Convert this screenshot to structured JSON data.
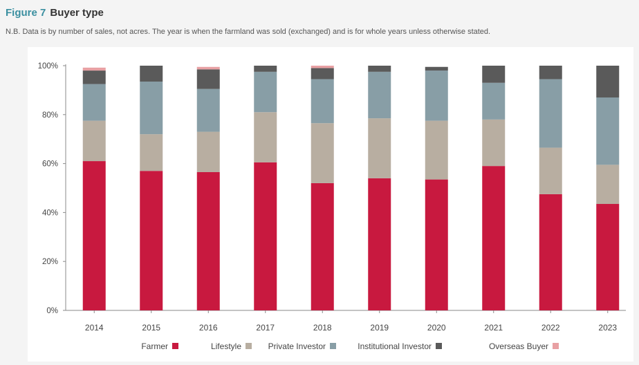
{
  "figure": {
    "number": "Figure 7",
    "title": "Buyer type",
    "note": "N.B. Data is by number of sales, not acres. The year is when the farmland was sold (exchanged) and is for whole years unless otherwise stated."
  },
  "chart_data": {
    "type": "bar",
    "stacked": true,
    "title": "Buyer type",
    "xlabel": "",
    "ylabel": "",
    "ylim": [
      0,
      100
    ],
    "y_ticks": [
      "0%",
      "20%",
      "40%",
      "60%",
      "80%",
      "100%"
    ],
    "y_tick_values": [
      0,
      20,
      40,
      60,
      80,
      100
    ],
    "categories": [
      "2014",
      "2015",
      "2016",
      "2017",
      "2018",
      "2019",
      "2020",
      "2021",
      "2022",
      "2023"
    ],
    "series": [
      {
        "name": "Farmer",
        "color": "#c8193f",
        "values": [
          61,
          57,
          56.5,
          60.5,
          52,
          54,
          53.5,
          59,
          47.5,
          43.5
        ]
      },
      {
        "name": "Lifestyle",
        "color": "#b8aea1",
        "values": [
          16.5,
          15,
          16.5,
          20.5,
          24.5,
          24.5,
          24,
          19,
          19,
          16
        ]
      },
      {
        "name": "Private Investor",
        "color": "#889ea6",
        "values": [
          15,
          21.5,
          17.5,
          16.5,
          18,
          19,
          20.5,
          15,
          28,
          27.5
        ]
      },
      {
        "name": "Institutional Investor",
        "color": "#5a5a5a",
        "values": [
          5.5,
          6.5,
          8,
          2.5,
          4.5,
          2.5,
          1.5,
          7,
          5.5,
          13
        ]
      },
      {
        "name": "Overseas Buyer",
        "color": "#e8a0a3",
        "values": [
          1.2,
          0,
          1,
          0,
          1,
          0,
          0,
          0,
          0,
          0
        ]
      }
    ],
    "legend_position": "bottom"
  }
}
